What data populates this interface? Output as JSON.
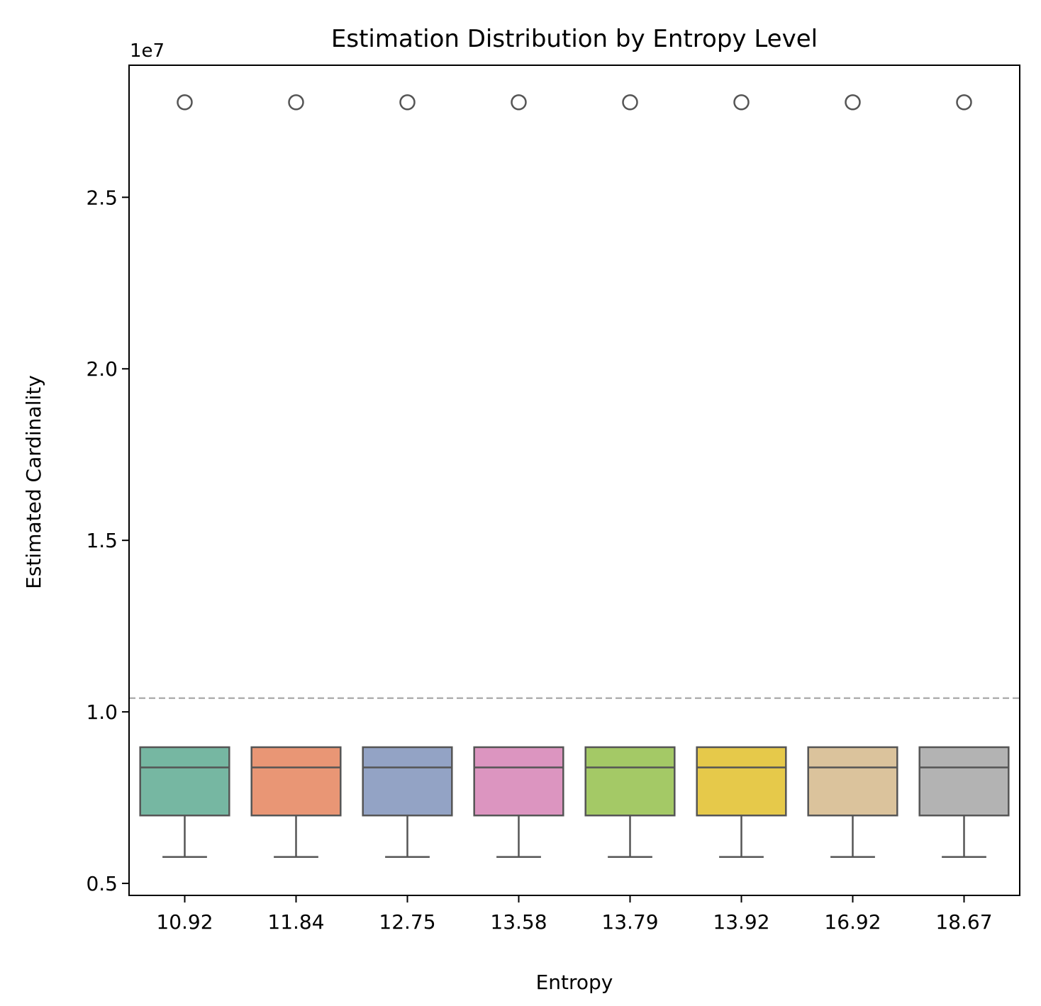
{
  "chart_data": {
    "type": "box",
    "title": "Estimation Distribution by Entropy Level",
    "xlabel": "Entropy",
    "ylabel": "Estimated Cardinality",
    "y_scale_label": "1e7",
    "y_scale": 10000000,
    "ylim": [
      0.465,
      2.885
    ],
    "yticks": [
      0.5,
      1.0,
      1.5,
      2.0,
      2.5
    ],
    "ytick_labels": [
      "0.5",
      "1.0",
      "1.5",
      "2.0",
      "2.5"
    ],
    "reference_line": {
      "y": 1.04,
      "style": "dashed",
      "color": "#b0b0b0"
    },
    "grid": false,
    "categories": [
      "10.92",
      "11.84",
      "12.75",
      "13.58",
      "13.79",
      "13.92",
      "16.92",
      "18.67"
    ],
    "colors": [
      "#76b7a2",
      "#e99675",
      "#93a3c5",
      "#dc95c0",
      "#a4c966",
      "#e6c94a",
      "#dbc39c",
      "#b3b3b3"
    ],
    "boxes": [
      {
        "category": "10.92",
        "whisker_low": 0.577,
        "q1": 0.698,
        "median": 0.838,
        "q3": 0.897,
        "whisker_high": 0.897,
        "outliers": [
          2.777
        ]
      },
      {
        "category": "11.84",
        "whisker_low": 0.577,
        "q1": 0.698,
        "median": 0.838,
        "q3": 0.897,
        "whisker_high": 0.897,
        "outliers": [
          2.777
        ]
      },
      {
        "category": "12.75",
        "whisker_low": 0.577,
        "q1": 0.698,
        "median": 0.838,
        "q3": 0.897,
        "whisker_high": 0.897,
        "outliers": [
          2.777
        ]
      },
      {
        "category": "13.58",
        "whisker_low": 0.577,
        "q1": 0.698,
        "median": 0.838,
        "q3": 0.897,
        "whisker_high": 0.897,
        "outliers": [
          2.777
        ]
      },
      {
        "category": "13.79",
        "whisker_low": 0.577,
        "q1": 0.698,
        "median": 0.838,
        "q3": 0.897,
        "whisker_high": 0.897,
        "outliers": [
          2.777
        ]
      },
      {
        "category": "13.92",
        "whisker_low": 0.577,
        "q1": 0.698,
        "median": 0.838,
        "q3": 0.897,
        "whisker_high": 0.897,
        "outliers": [
          2.777
        ]
      },
      {
        "category": "16.92",
        "whisker_low": 0.577,
        "q1": 0.698,
        "median": 0.838,
        "q3": 0.897,
        "whisker_high": 0.897,
        "outliers": [
          2.777
        ]
      },
      {
        "category": "18.67",
        "whisker_low": 0.577,
        "q1": 0.698,
        "median": 0.838,
        "q3": 0.897,
        "whisker_high": 0.897,
        "outliers": [
          2.777
        ]
      }
    ]
  }
}
